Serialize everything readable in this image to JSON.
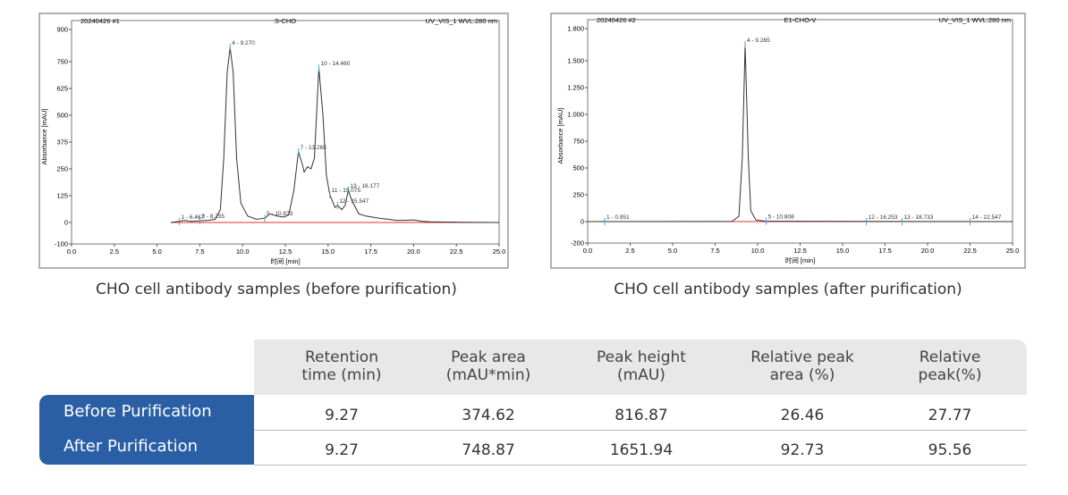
{
  "chart_data": [
    {
      "type": "line",
      "sample": "20240426 #1",
      "title": "S-CHO",
      "channel": "UV_VIS_1 WVL:280 nm",
      "y_label": "Absorbance [mAU]",
      "x_label": "时间 [min]",
      "caption": "CHO cell antibody samples (before purification)",
      "color": "#333333",
      "x": [
        5.8,
        6.3,
        6.6,
        7.0,
        7.5,
        8.0,
        8.4,
        8.7,
        8.9,
        9.1,
        9.27,
        9.45,
        9.65,
        9.9,
        10.3,
        10.8,
        11.3,
        11.6,
        12.0,
        12.4,
        12.7,
        13.0,
        13.265,
        13.5,
        13.6,
        13.8,
        14.0,
        14.2,
        14.46,
        14.7,
        14.9,
        15.1,
        15.4,
        15.55,
        15.8,
        16.0,
        16.18,
        16.4,
        16.8,
        17.2,
        17.6,
        18.0,
        18.5,
        19.0,
        19.5,
        20.0,
        20.5,
        21.0,
        22.0,
        23.0,
        25.0
      ],
      "values": [
        0,
        5,
        10,
        5,
        8,
        10,
        15,
        60,
        300,
        700,
        817,
        700,
        300,
        90,
        30,
        15,
        20,
        40,
        30,
        25,
        35,
        150,
        330,
        270,
        235,
        260,
        250,
        300,
        720,
        500,
        220,
        130,
        70,
        80,
        60,
        80,
        150,
        100,
        40,
        30,
        25,
        20,
        15,
        10,
        10,
        12,
        5,
        3,
        2,
        1,
        0
      ],
      "xlim": [
        0,
        25
      ],
      "ylim": [
        -100,
        900
      ],
      "xticks": [
        {
          "value": 0,
          "label": "0.0"
        },
        {
          "value": 2.5,
          "label": "2.5"
        },
        {
          "value": 5,
          "label": "5.0"
        },
        {
          "value": 7.5,
          "label": "7.5"
        },
        {
          "value": 10,
          "label": "10.0"
        },
        {
          "value": 12.5,
          "label": "12.5"
        },
        {
          "value": 15,
          "label": "15.0"
        },
        {
          "value": 17.5,
          "label": "17.5"
        },
        {
          "value": 20,
          "label": "20.0"
        },
        {
          "value": 22.5,
          "label": "22.5"
        },
        {
          "value": 25,
          "label": "25.0"
        }
      ],
      "yticks": [
        -100,
        0,
        125,
        250,
        375,
        500,
        625,
        750,
        900
      ],
      "annotations": [
        {
          "text": "4 - 9.270",
          "x": 9.27,
          "y": 817
        },
        {
          "text": "10 - 14.460",
          "x": 14.46,
          "y": 720
        },
        {
          "text": "7 - 13.265",
          "x": 13.265,
          "y": 330
        },
        {
          "text": "13 - 16.177",
          "x": 16.18,
          "y": 150
        },
        {
          "text": "11 - 15.075",
          "x": 15.1,
          "y": 130
        },
        {
          "text": "12 - 15.547",
          "x": 15.55,
          "y": 80
        },
        {
          "text": "5 - 10.873",
          "x": 11.3,
          "y": 20
        },
        {
          "text": "3 - 8.255",
          "x": 7.5,
          "y": 8
        },
        {
          "text": "1 - 6.467",
          "x": 6.3,
          "y": 5
        }
      ]
    },
    {
      "type": "line",
      "sample": "20240426 #2",
      "title": "E1-CHO-V",
      "channel": "UV_VIS_1 WVL:280 nm",
      "y_label": "Absorbance [mAU]",
      "x_label": "时间 [min]",
      "caption": "CHO cell antibody samples (after purification)",
      "color": "#333333",
      "x": [
        0,
        8.5,
        8.9,
        9.1,
        9.265,
        9.45,
        9.6,
        9.9,
        10.5,
        25
      ],
      "values": [
        0,
        2,
        50,
        600,
        1652,
        600,
        100,
        15,
        3,
        0
      ],
      "xlim": [
        0,
        25
      ],
      "ylim": [
        -200,
        1800
      ],
      "xticks": [
        {
          "value": 0,
          "label": "0.0"
        },
        {
          "value": 2.5,
          "label": "2.5"
        },
        {
          "value": 5,
          "label": "5.0"
        },
        {
          "value": 7.5,
          "label": "7.5"
        },
        {
          "value": 10,
          "label": "10.0"
        },
        {
          "value": 12.5,
          "label": "12.5"
        },
        {
          "value": 15,
          "label": "15.0"
        },
        {
          "value": 17.5,
          "label": "17.5"
        },
        {
          "value": 20,
          "label": "20.0"
        },
        {
          "value": 22.5,
          "label": "22.5"
        },
        {
          "value": 25,
          "label": "25.0"
        }
      ],
      "yticks": [
        -200,
        0,
        250,
        500,
        750,
        {
          "value": 1000,
          "label": "1.000"
        },
        {
          "value": 1250,
          "label": "1.250"
        },
        {
          "value": 1500,
          "label": "1.500"
        },
        {
          "value": 1800,
          "label": "1.800"
        }
      ],
      "annotations": [
        {
          "text": "4 - 9.265",
          "x": 9.265,
          "y": 1652
        },
        {
          "text": "1 - 0.951",
          "x": 1.0,
          "y": 0
        },
        {
          "text": "5 - 10.808",
          "x": 10.5,
          "y": 3
        },
        {
          "text": "12 - 16.253",
          "x": 16.4,
          "y": 0
        },
        {
          "text": "13 - 18.733",
          "x": 18.5,
          "y": 0
        },
        {
          "text": "14 - 22.547",
          "x": 22.5,
          "y": 0
        }
      ]
    }
  ],
  "table": {
    "header": [
      "Retention\ntime (min)",
      "Peak area\n(mAU*min)",
      "Peak height\n(mAU)",
      "Relative peak\narea (%)",
      "Relative\npeak(%)"
    ],
    "rows": [
      [
        "Before Purification",
        "9.27",
        "374.62",
        "816.87",
        "26.46",
        "27.77"
      ],
      [
        "After Purification",
        "9.27",
        "748.87",
        "1651.94",
        "92.73",
        "95.56"
      ]
    ]
  }
}
